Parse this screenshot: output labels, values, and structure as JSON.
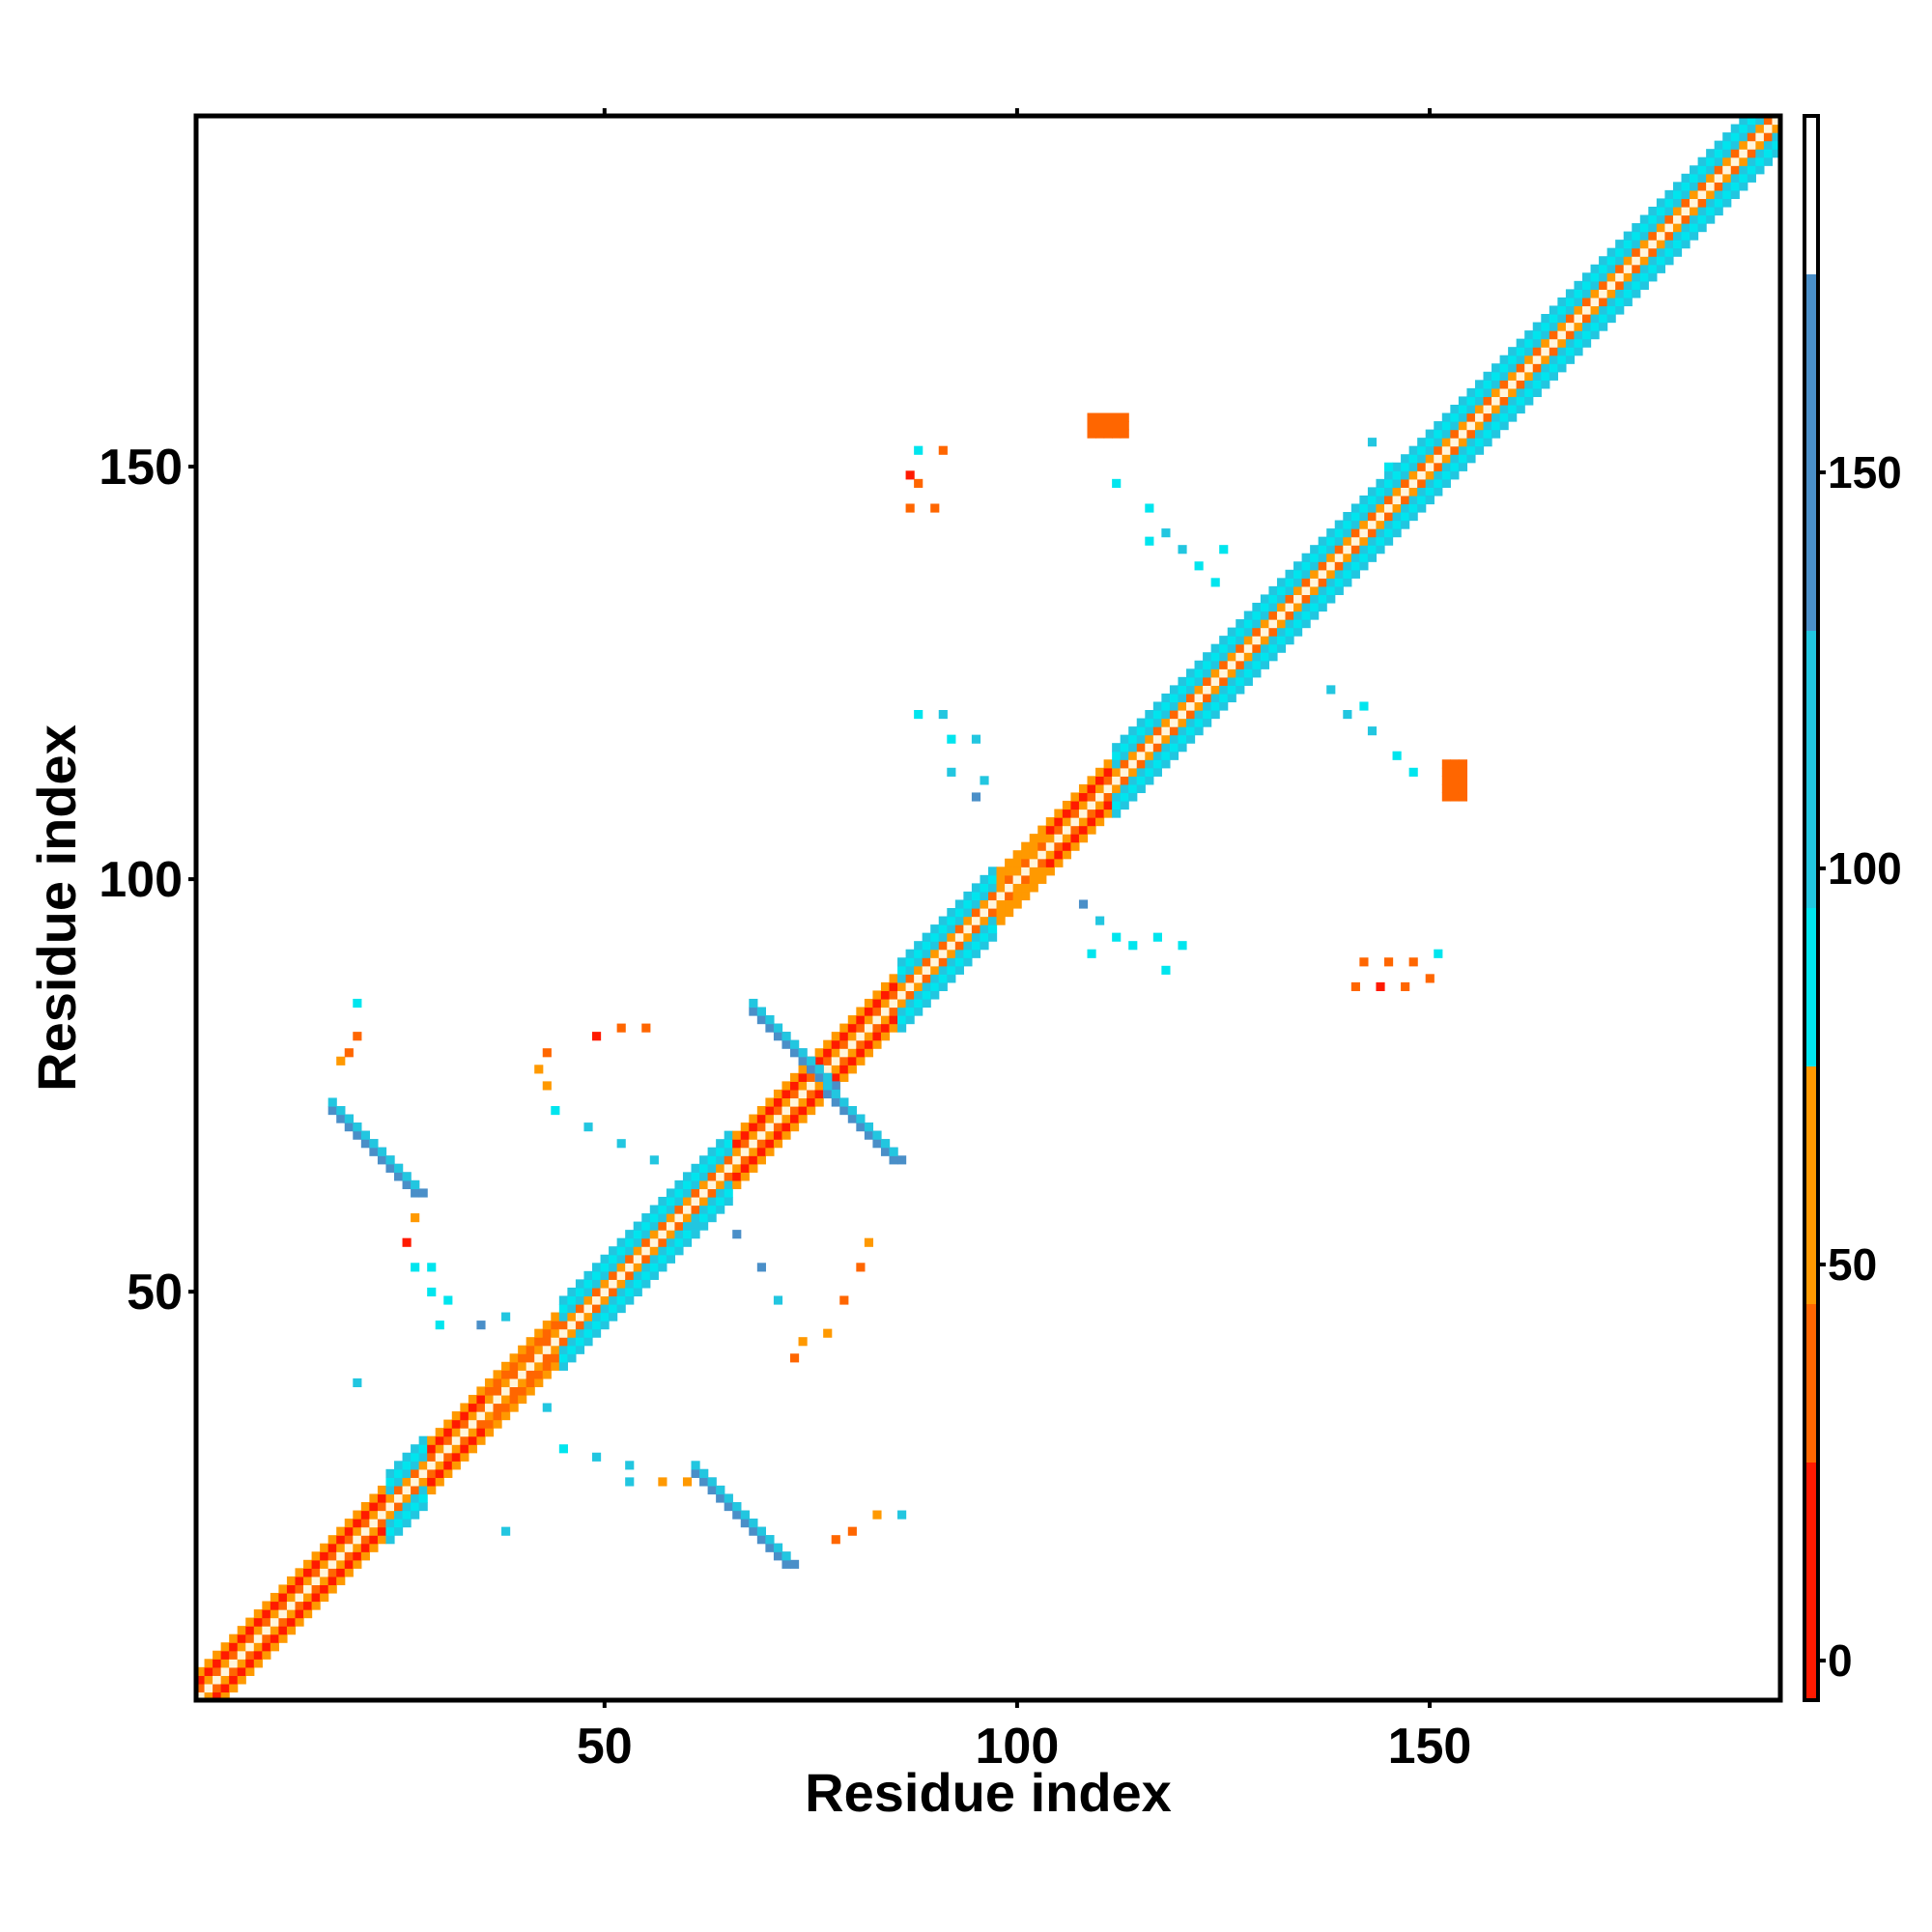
{
  "chart_data": {
    "type": "heatmap",
    "title": "",
    "xlabel": "Residue index",
    "ylabel": "Residue index",
    "xlim": [
      1,
      192
    ],
    "ylim": [
      1,
      192
    ],
    "x_ticks": [
      50,
      100,
      150
    ],
    "y_ticks": [
      50,
      100,
      150
    ],
    "x_tick_labels": [
      "50",
      "100",
      "150"
    ],
    "y_tick_labels": [
      "50",
      "100",
      "150"
    ],
    "colorbar": {
      "range": [
        -5,
        195
      ],
      "ticks": [
        0,
        50,
        100,
        150
      ],
      "tick_labels": [
        "0",
        "50",
        "100",
        "150"
      ],
      "bands": [
        {
          "from": -5,
          "to": 25,
          "color": "#ff1a00"
        },
        {
          "from": 25,
          "to": 45,
          "color": "#ff6600"
        },
        {
          "from": 45,
          "to": 75,
          "color": "#ff9900"
        },
        {
          "from": 75,
          "to": 95,
          "color": "#00e5ee"
        },
        {
          "from": 95,
          "to": 130,
          "color": "#22c6e0"
        },
        {
          "from": 130,
          "to": 175,
          "color": "#4a8fc8"
        },
        {
          "from": 175,
          "to": 195,
          "color": "#ffffff"
        }
      ]
    },
    "palette": {
      "red": "#ff1a00",
      "dark_orange": "#ff6600",
      "orange": "#ff9900",
      "cyan": "#00e5ee",
      "light_blue": "#22c6e0",
      "steel_blue": "#4a8fc8",
      "diagonal": "#fff5dc"
    },
    "diagonal_band": [
      {
        "from": 1,
        "to": 12,
        "color": "red"
      },
      {
        "from": 12,
        "to": 24,
        "color": "red"
      },
      {
        "from": 24,
        "to": 29,
        "color": "light_blue"
      },
      {
        "from": 29,
        "to": 36,
        "color": "red"
      },
      {
        "from": 36,
        "to": 45,
        "color": "dark_orange"
      },
      {
        "from": 45,
        "to": 66,
        "color": "light_blue"
      },
      {
        "from": 66,
        "to": 73,
        "color": "red"
      },
      {
        "from": 73,
        "to": 86,
        "color": "red"
      },
      {
        "from": 86,
        "to": 98,
        "color": "light_blue"
      },
      {
        "from": 98,
        "to": 104,
        "color": "orange"
      },
      {
        "from": 104,
        "to": 112,
        "color": "red"
      },
      {
        "from": 112,
        "to": 130,
        "color": "light_blue"
      },
      {
        "from": 130,
        "to": 156,
        "color": "light_blue"
      },
      {
        "from": 156,
        "to": 192,
        "color": "light_blue"
      }
    ],
    "segments": [
      {
        "x": [
          68,
          85
        ],
        "y": [
          84,
          66
        ],
        "color": "steel_blue"
      },
      {
        "x": [
          17,
          27
        ],
        "y": [
          72,
          62
        ],
        "color": "steel_blue"
      },
      {
        "x": [
          61,
          72
        ],
        "y": [
          28,
          17
        ],
        "color": "steel_blue"
      }
    ],
    "blobs": [
      {
        "x": 111,
        "y": 155,
        "rx": 2.5,
        "ry": 1.5,
        "color": "dark_orange"
      },
      {
        "x": 153,
        "y": 112,
        "rx": 1.5,
        "ry": 2.5,
        "color": "dark_orange"
      }
    ],
    "contacts": [
      {
        "x": 88,
        "y": 152,
        "color": "cyan"
      },
      {
        "x": 91,
        "y": 152,
        "color": "dark_orange"
      },
      {
        "x": 87,
        "y": 149,
        "color": "red"
      },
      {
        "x": 88,
        "y": 148,
        "color": "dark_orange"
      },
      {
        "x": 87,
        "y": 145,
        "color": "dark_orange"
      },
      {
        "x": 90,
        "y": 145,
        "color": "dark_orange"
      },
      {
        "x": 112,
        "y": 148,
        "color": "cyan"
      },
      {
        "x": 116,
        "y": 145,
        "color": "cyan"
      },
      {
        "x": 118,
        "y": 142,
        "color": "light_blue"
      },
      {
        "x": 120,
        "y": 140,
        "color": "light_blue"
      },
      {
        "x": 122,
        "y": 138,
        "color": "cyan"
      },
      {
        "x": 124,
        "y": 136,
        "color": "cyan"
      },
      {
        "x": 125,
        "y": 140,
        "color": "cyan"
      },
      {
        "x": 116,
        "y": 141,
        "color": "cyan"
      },
      {
        "x": 143,
        "y": 153,
        "color": "light_blue"
      },
      {
        "x": 150,
        "y": 146,
        "color": "light_blue"
      },
      {
        "x": 145,
        "y": 150,
        "color": "cyan"
      },
      {
        "x": 88,
        "y": 120,
        "color": "cyan"
      },
      {
        "x": 91,
        "y": 120,
        "color": "light_blue"
      },
      {
        "x": 92,
        "y": 117,
        "color": "cyan"
      },
      {
        "x": 95,
        "y": 117,
        "color": "light_blue"
      },
      {
        "x": 92,
        "y": 113,
        "color": "light_blue"
      },
      {
        "x": 95,
        "y": 110,
        "color": "steel_blue"
      },
      {
        "x": 96,
        "y": 112,
        "color": "light_blue"
      },
      {
        "x": 138,
        "y": 123,
        "color": "light_blue"
      },
      {
        "x": 140,
        "y": 120,
        "color": "light_blue"
      },
      {
        "x": 142,
        "y": 121,
        "color": "cyan"
      },
      {
        "x": 143,
        "y": 118,
        "color": "light_blue"
      },
      {
        "x": 146,
        "y": 115,
        "color": "cyan"
      },
      {
        "x": 148,
        "y": 113,
        "color": "cyan"
      },
      {
        "x": 108,
        "y": 97,
        "color": "steel_blue"
      },
      {
        "x": 110,
        "y": 95,
        "color": "light_blue"
      },
      {
        "x": 112,
        "y": 93,
        "color": "cyan"
      },
      {
        "x": 114,
        "y": 92,
        "color": "cyan"
      },
      {
        "x": 117,
        "y": 93,
        "color": "cyan"
      },
      {
        "x": 120,
        "y": 92,
        "color": "cyan"
      },
      {
        "x": 118,
        "y": 89,
        "color": "cyan"
      },
      {
        "x": 109,
        "y": 91,
        "color": "cyan"
      },
      {
        "x": 142,
        "y": 90,
        "color": "dark_orange"
      },
      {
        "x": 145,
        "y": 90,
        "color": "dark_orange"
      },
      {
        "x": 148,
        "y": 90,
        "color": "dark_orange"
      },
      {
        "x": 151,
        "y": 91,
        "color": "cyan"
      },
      {
        "x": 141,
        "y": 87,
        "color": "dark_orange"
      },
      {
        "x": 144,
        "y": 87,
        "color": "red"
      },
      {
        "x": 147,
        "y": 87,
        "color": "dark_orange"
      },
      {
        "x": 150,
        "y": 88,
        "color": "dark_orange"
      },
      {
        "x": 20,
        "y": 85,
        "color": "cyan"
      },
      {
        "x": 20,
        "y": 81,
        "color": "dark_orange"
      },
      {
        "x": 19,
        "y": 79,
        "color": "dark_orange"
      },
      {
        "x": 18,
        "y": 78,
        "color": "orange"
      },
      {
        "x": 27,
        "y": 59,
        "color": "orange"
      },
      {
        "x": 26,
        "y": 56,
        "color": "red"
      },
      {
        "x": 27,
        "y": 53,
        "color": "cyan"
      },
      {
        "x": 29,
        "y": 53,
        "color": "cyan"
      },
      {
        "x": 29,
        "y": 50,
        "color": "cyan"
      },
      {
        "x": 31,
        "y": 49,
        "color": "cyan"
      },
      {
        "x": 30,
        "y": 46,
        "color": "cyan"
      },
      {
        "x": 35,
        "y": 46,
        "color": "steel_blue"
      },
      {
        "x": 38,
        "y": 47,
        "color": "light_blue"
      },
      {
        "x": 20,
        "y": 39,
        "color": "light_blue"
      },
      {
        "x": 38,
        "y": 21,
        "color": "light_blue"
      },
      {
        "x": 42,
        "y": 77,
        "color": "orange"
      },
      {
        "x": 43,
        "y": 79,
        "color": "dark_orange"
      },
      {
        "x": 49,
        "y": 81,
        "color": "red"
      },
      {
        "x": 52,
        "y": 82,
        "color": "dark_orange"
      },
      {
        "x": 55,
        "y": 82,
        "color": "dark_orange"
      },
      {
        "x": 43,
        "y": 75,
        "color": "orange"
      },
      {
        "x": 44,
        "y": 72,
        "color": "cyan"
      },
      {
        "x": 48,
        "y": 70,
        "color": "light_blue"
      },
      {
        "x": 52,
        "y": 68,
        "color": "light_blue"
      },
      {
        "x": 56,
        "y": 66,
        "color": "light_blue"
      },
      {
        "x": 61,
        "y": 58,
        "color": "light_blue"
      },
      {
        "x": 66,
        "y": 57,
        "color": "steel_blue"
      },
      {
        "x": 69,
        "y": 53,
        "color": "steel_blue"
      },
      {
        "x": 71,
        "y": 49,
        "color": "light_blue"
      },
      {
        "x": 82,
        "y": 56,
        "color": "orange"
      },
      {
        "x": 81,
        "y": 53,
        "color": "dark_orange"
      },
      {
        "x": 79,
        "y": 49,
        "color": "dark_orange"
      },
      {
        "x": 77,
        "y": 45,
        "color": "orange"
      },
      {
        "x": 74,
        "y": 44,
        "color": "orange"
      },
      {
        "x": 73,
        "y": 42,
        "color": "dark_orange"
      },
      {
        "x": 43,
        "y": 36,
        "color": "light_blue"
      },
      {
        "x": 45,
        "y": 31,
        "color": "cyan"
      },
      {
        "x": 49,
        "y": 30,
        "color": "light_blue"
      },
      {
        "x": 53,
        "y": 29,
        "color": "light_blue"
      },
      {
        "x": 53,
        "y": 27,
        "color": "light_blue"
      },
      {
        "x": 57,
        "y": 27,
        "color": "orange"
      },
      {
        "x": 60,
        "y": 27,
        "color": "orange"
      },
      {
        "x": 78,
        "y": 20,
        "color": "dark_orange"
      },
      {
        "x": 80,
        "y": 21,
        "color": "dark_orange"
      },
      {
        "x": 83,
        "y": 23,
        "color": "orange"
      },
      {
        "x": 86,
        "y": 23,
        "color": "light_blue"
      }
    ]
  }
}
